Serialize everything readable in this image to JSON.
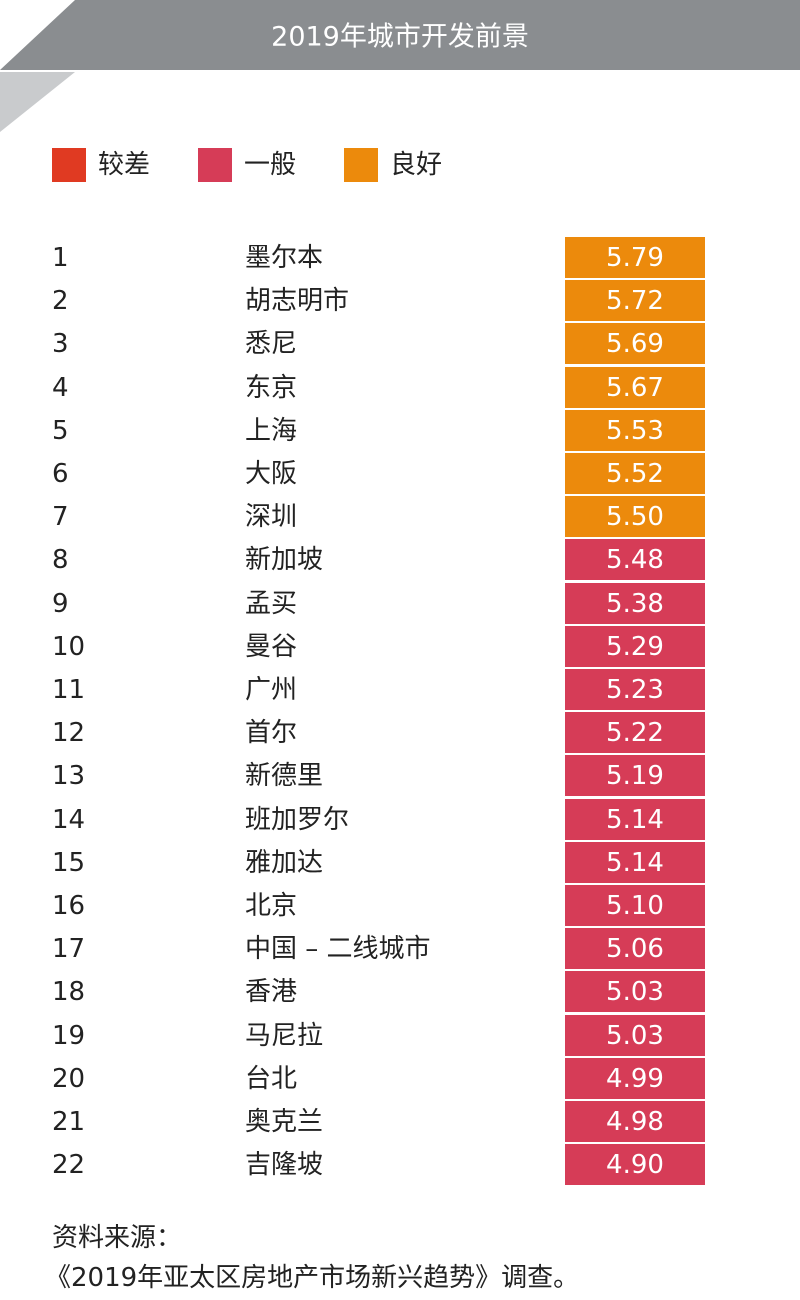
{
  "header": {
    "title": "2019年城市开发前景"
  },
  "legend": [
    {
      "name": "较差",
      "color": "#e03a22"
    },
    {
      "name": "一般",
      "color": "#d63c57"
    },
    {
      "name": "良好",
      "color": "#ec8a0c"
    }
  ],
  "table": {
    "rows": [
      {
        "rank": 1,
        "city": "墨尔本",
        "score": "5.79",
        "color": "#ec8a0c"
      },
      {
        "rank": 2,
        "city": "胡志明市",
        "score": "5.72",
        "color": "#ec8a0c"
      },
      {
        "rank": 3,
        "city": "悉尼",
        "score": "5.69",
        "color": "#ec8a0c"
      },
      {
        "rank": 4,
        "city": "东京",
        "score": "5.67",
        "color": "#ec8a0c"
      },
      {
        "rank": 5,
        "city": "上海",
        "score": "5.53",
        "color": "#ec8a0c"
      },
      {
        "rank": 6,
        "city": "大阪",
        "score": "5.52",
        "color": "#ec8a0c"
      },
      {
        "rank": 7,
        "city": "深圳",
        "score": "5.50",
        "color": "#ec8a0c"
      },
      {
        "rank": 8,
        "city": "新加坡",
        "score": "5.48",
        "color": "#d63c57"
      },
      {
        "rank": 9,
        "city": "孟买",
        "score": "5.38",
        "color": "#d63c57"
      },
      {
        "rank": 10,
        "city": "曼谷",
        "score": "5.29",
        "color": "#d63c57"
      },
      {
        "rank": 11,
        "city": "广州",
        "score": "5.23",
        "color": "#d63c57"
      },
      {
        "rank": 12,
        "city": "首尔",
        "score": "5.22",
        "color": "#d63c57"
      },
      {
        "rank": 13,
        "city": "新德里",
        "score": "5.19",
        "color": "#d63c57"
      },
      {
        "rank": 14,
        "city": "班加罗尔",
        "score": "5.14",
        "color": "#d63c57"
      },
      {
        "rank": 15,
        "city": "雅加达",
        "score": "5.14",
        "color": "#d63c57"
      },
      {
        "rank": 16,
        "city": "北京",
        "score": "5.10",
        "color": "#d63c57"
      },
      {
        "rank": 17,
        "city": "中国 – 二线城市",
        "score": "5.06",
        "color": "#d63c57"
      },
      {
        "rank": 18,
        "city": "香港",
        "score": "5.03",
        "color": "#d63c57"
      },
      {
        "rank": 19,
        "city": "马尼拉",
        "score": "5.03",
        "color": "#d63c57"
      },
      {
        "rank": 20,
        "city": "台北",
        "score": "4.99",
        "color": "#d63c57"
      },
      {
        "rank": 21,
        "city": "奥克兰",
        "score": "4.98",
        "color": "#d63c57"
      },
      {
        "rank": 22,
        "city": "吉隆坡",
        "score": "4.90",
        "color": "#d63c57"
      }
    ]
  },
  "footer": {
    "lines": [
      "资料来源：",
      "《2019年亚太区房地产市场新兴趋势》调查。"
    ]
  }
}
